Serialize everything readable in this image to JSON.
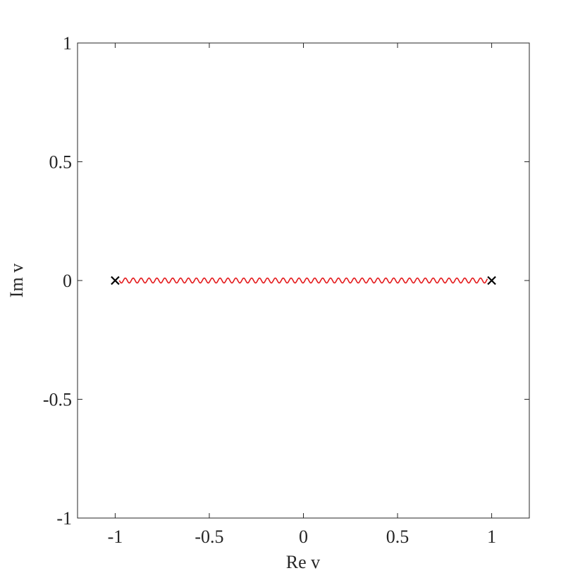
{
  "chart_data": {
    "type": "scatter",
    "x_label": "Re v",
    "y_label": "Im v",
    "xlim": [
      -1.2,
      1.2
    ],
    "ylim": [
      -1,
      1
    ],
    "xticks": [
      -1,
      -0.5,
      0,
      0.5,
      1
    ],
    "yticks": [
      -1,
      -0.5,
      0,
      0.5,
      1
    ],
    "grid": false,
    "series": [
      {
        "style": "wavy",
        "color": "#e41a1c",
        "x": [
          -1,
          1
        ],
        "values": [
          0,
          0
        ]
      },
      {
        "marker": "x",
        "color": "#000000",
        "x": [
          -1,
          1
        ],
        "values": [
          0,
          0
        ]
      }
    ]
  }
}
